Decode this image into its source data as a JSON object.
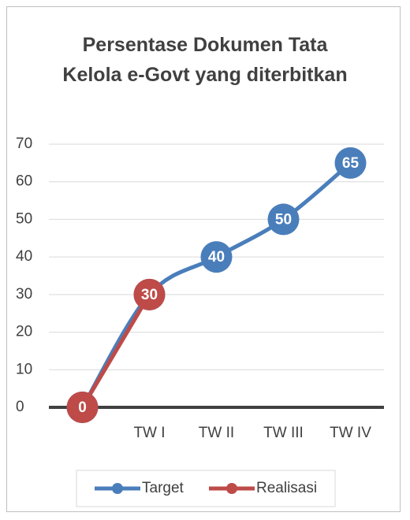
{
  "chart_data": {
    "type": "line",
    "title": "Persentase Dokumen Tata Kelola  e-Govt yang diterbitkan",
    "categories": [
      null,
      "TW I",
      "TW II",
      "TW III",
      "TW IV"
    ],
    "series": [
      {
        "name": "Target",
        "color": "#4a7ebb",
        "values": [
          0,
          30,
          40,
          50,
          65
        ]
      },
      {
        "name": "Realisasi",
        "color": "#be4b48",
        "values": [
          0,
          30,
          null,
          null,
          null
        ]
      }
    ],
    "ylim": [
      0,
      70
    ],
    "yticks": [
      0,
      10,
      20,
      30,
      40,
      50,
      60,
      70
    ],
    "grid": true,
    "legend": "bottom"
  }
}
